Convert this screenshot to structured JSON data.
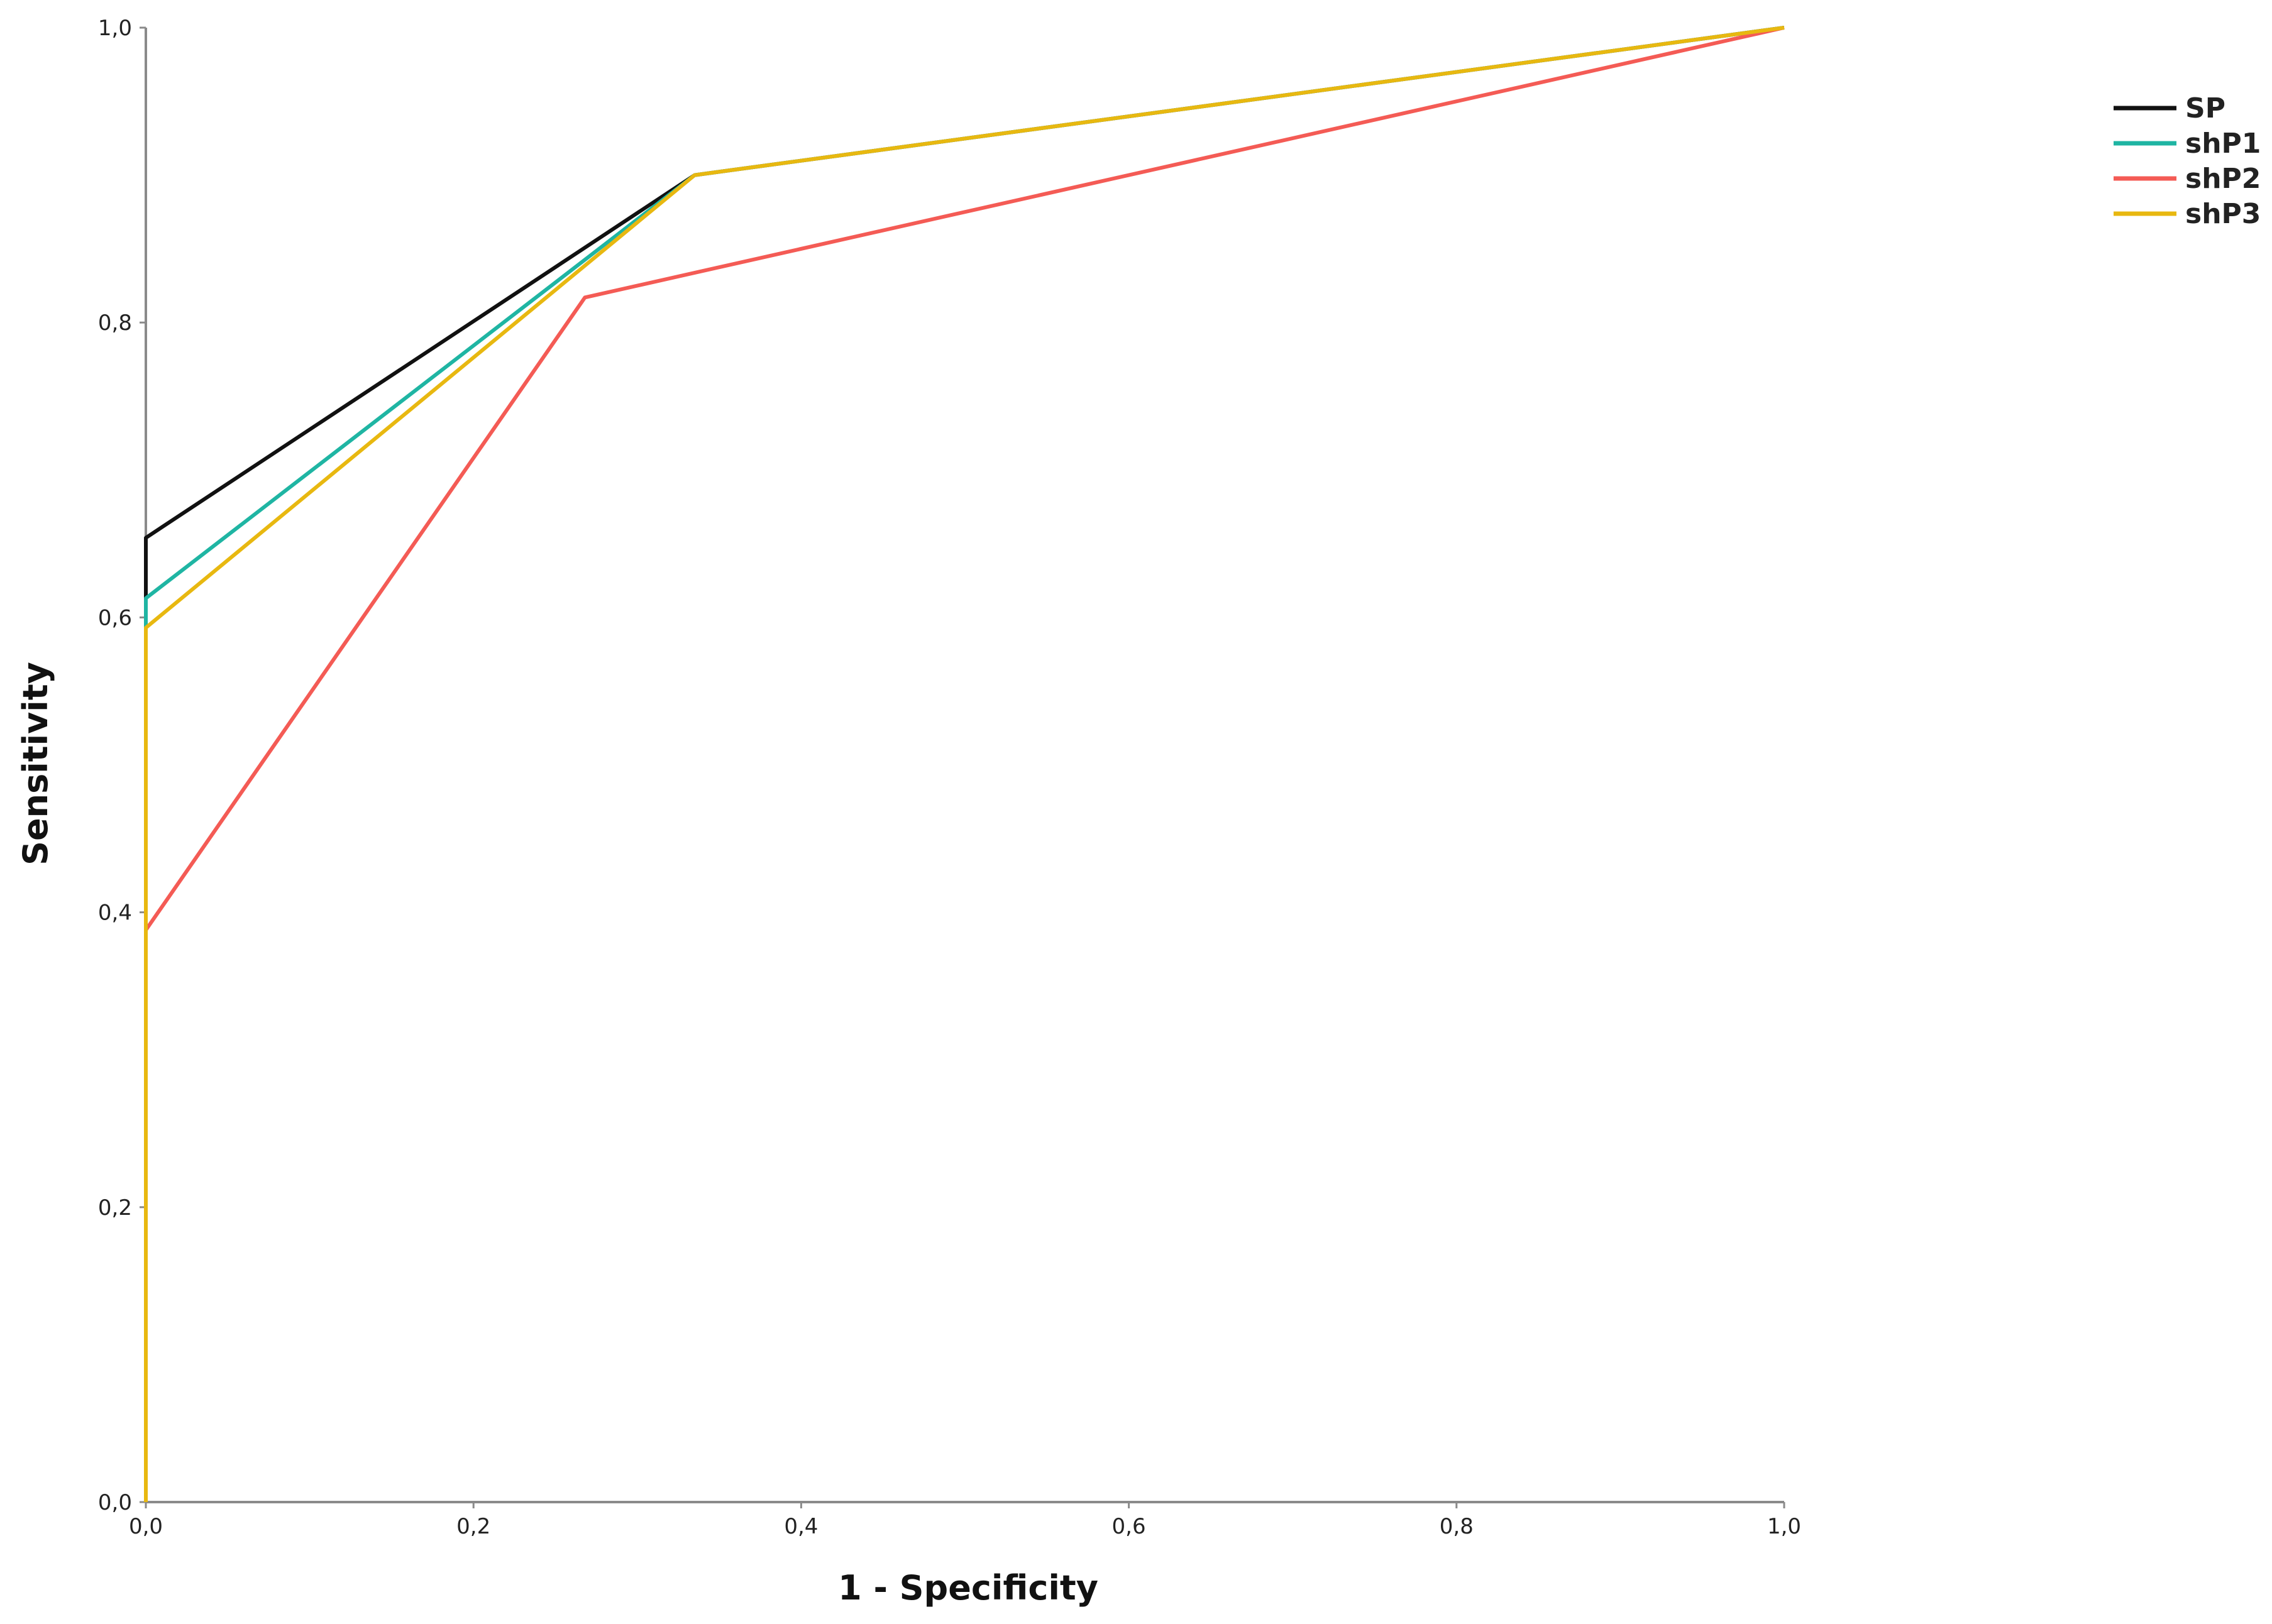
{
  "chart_data": {
    "type": "line",
    "xlabel": "1 - Specificity",
    "ylabel": "Sensitivity",
    "xlim": [
      0,
      1
    ],
    "ylim": [
      0,
      1
    ],
    "x_ticks": [
      "0,0",
      "0,2",
      "0,4",
      "0,6",
      "0,8",
      "1,0"
    ],
    "y_ticks": [
      "0,0",
      "0,2",
      "0,4",
      "0,6",
      "0,8",
      "1,0"
    ],
    "grid": false,
    "legend_position": "top-right",
    "series": [
      {
        "name": "SP",
        "color": "#111111",
        "points": [
          [
            0,
            0
          ],
          [
            0,
            0.654
          ],
          [
            0.335,
            0.9
          ],
          [
            1,
            1
          ]
        ]
      },
      {
        "name": "shP1",
        "color": "#1fb5a3",
        "points": [
          [
            0,
            0
          ],
          [
            0,
            0.613
          ],
          [
            0.335,
            0.9
          ],
          [
            1,
            1
          ]
        ]
      },
      {
        "name": "shP2",
        "color": "#f45b55",
        "points": [
          [
            0,
            0
          ],
          [
            0,
            0.388
          ],
          [
            0.268,
            0.817
          ],
          [
            1,
            1
          ]
        ]
      },
      {
        "name": "shP3",
        "color": "#e8b810",
        "points": [
          [
            0,
            0
          ],
          [
            0,
            0.593
          ],
          [
            0.335,
            0.9
          ],
          [
            1,
            1
          ]
        ]
      }
    ]
  }
}
